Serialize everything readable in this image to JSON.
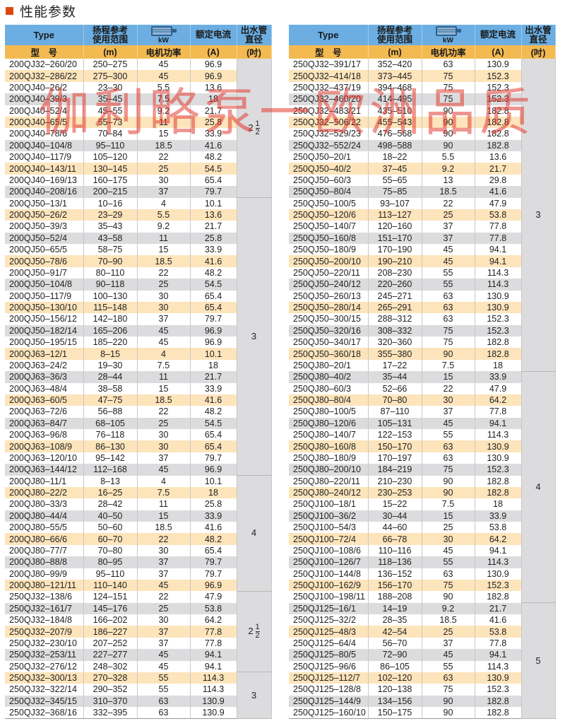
{
  "title": "性能参数",
  "watermark": "伽利略泵一欧洲品质",
  "colors": {
    "header_blue": "#6caee2",
    "header_orange": "#f3ba52",
    "row_orange": "#fde4bb",
    "row_grey": "#dcdcde",
    "title_square": "#e0470f"
  },
  "headers": {
    "type": "Type",
    "range": "扬程参考使用范围",
    "kw_icon": "motor-icon",
    "kw": "kW",
    "current": "额定电流",
    "pipe": "出水管直径",
    "type_cn": "型　号",
    "range_unit": "(m)",
    "power": "电机功率",
    "current_unit": "(A)",
    "pipe_unit": "(吋)"
  },
  "left": {
    "rows": [
      [
        "200QJ32-260/20",
        "250-275",
        "45",
        "96.9"
      ],
      [
        "200QJ32-286/22",
        "275-300",
        "45",
        "96.9"
      ],
      [
        "200QJ40-26/2",
        "23-30",
        "5.5",
        "13.6"
      ],
      [
        "200QJ40-39/3",
        "35-45",
        "7.5",
        "18"
      ],
      [
        "200QJ40-52/4",
        "45-55",
        "9.2",
        "21.7"
      ],
      [
        "200QJ40-65/5",
        "55-73",
        "11",
        "25.8"
      ],
      [
        "200QJ40-78/6",
        "70-84",
        "15",
        "33.9"
      ],
      [
        "200QJ40-104/8",
        "95-110",
        "18.5",
        "41.6"
      ],
      [
        "200QJ40-117/9",
        "105-120",
        "22",
        "48.2"
      ],
      [
        "200QJ40-143/11",
        "130-145",
        "25",
        "54.5"
      ],
      [
        "200QJ40-169/13",
        "160-175",
        "30",
        "65.4"
      ],
      [
        "200QJ40-208/16",
        "200-215",
        "37",
        "79.7"
      ],
      [
        "200QJ50-13/1",
        "10-16",
        "4",
        "10.1"
      ],
      [
        "200QJ50-26/2",
        "23-29",
        "5.5",
        "13.6"
      ],
      [
        "200QJ50-39/3",
        "35-43",
        "9.2",
        "21.7"
      ],
      [
        "200QJ50-52/4",
        "43-58",
        "11",
        "25.8"
      ],
      [
        "200QJ50-65/5",
        "58-75",
        "15",
        "33.9"
      ],
      [
        "200QJ50-78/6",
        "70-90",
        "18.5",
        "41.6"
      ],
      [
        "200QJ50-91/7",
        "80-110",
        "22",
        "48.2"
      ],
      [
        "200QJ50-104/8",
        "90-118",
        "25",
        "54.5"
      ],
      [
        "200QJ50-117/9",
        "100-130",
        "30",
        "65.4"
      ],
      [
        "200QJ50-130/10",
        "115-148",
        "30",
        "65.4"
      ],
      [
        "200QJ50-156/12",
        "142-180",
        "37",
        "79.7"
      ],
      [
        "200QJ50-182/14",
        "165-206",
        "45",
        "96.9"
      ],
      [
        "200QJ50-195/15",
        "185-220",
        "45",
        "96.9"
      ],
      [
        "200QJ63-12/1",
        "8-15",
        "4",
        "10.1"
      ],
      [
        "200QJ63-24/2",
        "19-30",
        "7.5",
        "18"
      ],
      [
        "200QJ63-36/3",
        "28-44",
        "11",
        "21.7"
      ],
      [
        "200QJ63-48/4",
        "38-58",
        "15",
        "33.9"
      ],
      [
        "200QJ63-60/5",
        "47-75",
        "18.5",
        "41.6"
      ],
      [
        "200QJ63-72/6",
        "56-88",
        "22",
        "48.2"
      ],
      [
        "200QJ63-84/7",
        "68-105",
        "25",
        "54.5"
      ],
      [
        "200QJ63-96/8",
        "76-118",
        "30",
        "65.4"
      ],
      [
        "200QJ63-108/9",
        "86-130",
        "30",
        "65.4"
      ],
      [
        "200QJ63-120/10",
        "95-142",
        "37",
        "79.7"
      ],
      [
        "200QJ63-144/12",
        "112-168",
        "45",
        "96.9"
      ],
      [
        "200QJ80-11/1",
        "8-13",
        "4",
        "10.1"
      ],
      [
        "200QJ80-22/2",
        "16-25",
        "7.5",
        "18"
      ],
      [
        "200QJ80-33/3",
        "28-42",
        "11",
        "25.8"
      ],
      [
        "200QJ80-44/4",
        "40-50",
        "15",
        "33.9"
      ],
      [
        "200QJ80-55/5",
        "50-60",
        "18.5",
        "41.6"
      ],
      [
        "200QJ80-66/6",
        "60-70",
        "22",
        "48.2"
      ],
      [
        "200QJ80-77/7",
        "70-80",
        "30",
        "65.4"
      ],
      [
        "200QJ80-88/8",
        "80-95",
        "37",
        "79.7"
      ],
      [
        "200QJ80-99/9",
        "95-110",
        "37",
        "79.7"
      ],
      [
        "200QJ80-121/11",
        "110-140",
        "45",
        "96.9"
      ],
      [
        "250QJ32-138/6",
        "124-151",
        "22",
        "47.9"
      ],
      [
        "250QJ32-161/7",
        "145-176",
        "25",
        "53.8"
      ],
      [
        "250QJ32-184/8",
        "166-202",
        "30",
        "64.2"
      ],
      [
        "250QJ32-207/9",
        "186-227",
        "37",
        "77.8"
      ],
      [
        "250QJ32-230/10",
        "207-252",
        "37",
        "77.8"
      ],
      [
        "250QJ32-253/11",
        "227-277",
        "45",
        "94.1"
      ],
      [
        "250QJ32-276/12",
        "248-302",
        "45",
        "94.1"
      ],
      [
        "250QJ32-300/13",
        "270-328",
        "55",
        "114.3"
      ],
      [
        "250QJ32-322/14",
        "290-352",
        "55",
        "114.3"
      ],
      [
        "250QJ32-345/15",
        "310-370",
        "63",
        "130.9"
      ],
      [
        "250QJ32-368/16",
        "332-395",
        "63",
        "130.9"
      ]
    ],
    "pipe_groups": [
      {
        "whole": "2",
        "num": "1",
        "den": "2",
        "rows": 12
      },
      {
        "whole": "3",
        "rows": 24
      },
      {
        "whole": "4",
        "rows": 10
      },
      {
        "whole": "2",
        "num": "1",
        "den": "2",
        "rows": 7
      },
      {
        "whole": "3",
        "rows": 4
      }
    ]
  },
  "right": {
    "rows": [
      [
        "250QJ32-391/17",
        "352-420",
        "63",
        "130.9"
      ],
      [
        "250QJ32-414/18",
        "373-445",
        "75",
        "152.3"
      ],
      [
        "250QJ32-437/19",
        "394-468",
        "75",
        "152.3"
      ],
      [
        "250QJ32-460/20",
        "414-495",
        "75",
        "152.3"
      ],
      [
        "250QJ32-483/21",
        "435-510",
        "90",
        "182.8"
      ],
      [
        "250QJ32-506/22",
        "455-543",
        "90",
        "182.8"
      ],
      [
        "250QJ32-529/23",
        "476-568",
        "90",
        "182.8"
      ],
      [
        "250QJ32-552/24",
        "498-588",
        "90",
        "182.8"
      ],
      [
        "250QJ50-20/1",
        "18-22",
        "5.5",
        "13.6"
      ],
      [
        "250QJ50-40/2",
        "37-45",
        "9.2",
        "21.7"
      ],
      [
        "250QJ50-60/3",
        "55-65",
        "13",
        "29.8"
      ],
      [
        "250QJ50-80/4",
        "75-85",
        "18.5",
        "41.6"
      ],
      [
        "250QJ50-100/5",
        "93-107",
        "22",
        "47.9"
      ],
      [
        "250QJ50-120/6",
        "113-127",
        "25",
        "53.8"
      ],
      [
        "250QJ50-140/7",
        "120-160",
        "37",
        "77.8"
      ],
      [
        "250QJ50-160/8",
        "151-170",
        "37",
        "77.8"
      ],
      [
        "250QJ50-180/9",
        "170-190",
        "45",
        "94.1"
      ],
      [
        "250QJ50-200/10",
        "190-210",
        "45",
        "94.1"
      ],
      [
        "250QJ50-220/11",
        "208-230",
        "55",
        "114.3"
      ],
      [
        "250QJ50-240/12",
        "220-260",
        "55",
        "114.3"
      ],
      [
        "250QJ50-260/13",
        "245-271",
        "63",
        "130.9"
      ],
      [
        "250QJ50-280/14",
        "265-291",
        "63",
        "130.9"
      ],
      [
        "250QJ50-300/15",
        "288-312",
        "63",
        "152.3"
      ],
      [
        "250QJ50-320/16",
        "308-332",
        "75",
        "152.3"
      ],
      [
        "250QJ50-340/17",
        "320-360",
        "75",
        "182.8"
      ],
      [
        "250QJ50-360/18",
        "355-380",
        "90",
        "182.8"
      ],
      [
        "250QJ80-20/1",
        "17-22",
        "7.5",
        "18"
      ],
      [
        "250QJ80-40/2",
        "35-44",
        "15",
        "33.9"
      ],
      [
        "250QJ80-60/3",
        "52-66",
        "22",
        "47.9"
      ],
      [
        "250QJ80-80/4",
        "70-80",
        "30",
        "64.2"
      ],
      [
        "250QJ80-100/5",
        "87-110",
        "37",
        "77.8"
      ],
      [
        "250QJ80-120/6",
        "105-131",
        "45",
        "94.1"
      ],
      [
        "250QJ80-140/7",
        "122-153",
        "55",
        "114.3"
      ],
      [
        "250QJ80-160/8",
        "150-170",
        "63",
        "130.9"
      ],
      [
        "250QJ80-180/9",
        "170-197",
        "63",
        "130.9"
      ],
      [
        "250QJ80-200/10",
        "184-219",
        "75",
        "152.3"
      ],
      [
        "250QJ80-220/11",
        "210-230",
        "90",
        "182.8"
      ],
      [
        "250QJ80-240/12",
        "230-253",
        "90",
        "182.8"
      ],
      [
        "250QJ100-18/1",
        "15-22",
        "7.5",
        "18"
      ],
      [
        "250QJ100-36/2",
        "30-44",
        "15",
        "33.9"
      ],
      [
        "250QJ100-54/3",
        "44-60",
        "25",
        "53.8"
      ],
      [
        "250QJ100-72/4",
        "66-78",
        "30",
        "64.2"
      ],
      [
        "250QJ100-108/6",
        "110-116",
        "45",
        "94.1"
      ],
      [
        "250QJ100-126/7",
        "118-136",
        "55",
        "114.3"
      ],
      [
        "250QJ100-144/8",
        "136-152",
        "63",
        "130.9"
      ],
      [
        "250QJ100-162/9",
        "156-170",
        "75",
        "152.3"
      ],
      [
        "250QJ100-198/11",
        "188-208",
        "90",
        "182.8"
      ],
      [
        "250QJ125-16/1",
        "14-19",
        "9.2",
        "21.7"
      ],
      [
        "250QJ125-32/2",
        "28-35",
        "18.5",
        "41.6"
      ],
      [
        "250QJ125-48/3",
        "42-54",
        "25",
        "53.8"
      ],
      [
        "250QJ125-64/4",
        "56-70",
        "37",
        "77.8"
      ],
      [
        "250QJ125-80/5",
        "72-90",
        "45",
        "94.1"
      ],
      [
        "250QJ125-96/6",
        "86-105",
        "55",
        "114.3"
      ],
      [
        "250QJ125-112/7",
        "102-120",
        "63",
        "130.9"
      ],
      [
        "250QJ125-128/8",
        "120-138",
        "75",
        "152.3"
      ],
      [
        "250QJ125-144/9",
        "134-156",
        "90",
        "182.8"
      ],
      [
        "250QJ125-160/10",
        "150-175",
        "90",
        "182.8"
      ]
    ],
    "pipe_groups": [
      {
        "whole": "3",
        "rows": 27
      },
      {
        "whole": "4",
        "rows": 20
      },
      {
        "whole": "5",
        "rows": 10
      }
    ]
  }
}
